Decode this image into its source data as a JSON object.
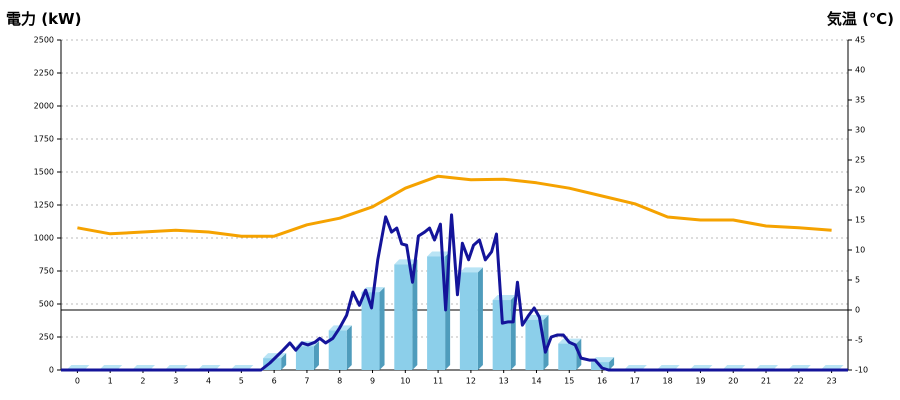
{
  "chart_data": {
    "type": "combo",
    "y_axis_title": "電力 (kW)",
    "y2_axis_title": "気温 (℃)",
    "y_title_color": "#1f5fa8",
    "y2_title_color": "#f08a1c",
    "categories": [
      "0",
      "1",
      "2",
      "3",
      "4",
      "5",
      "6",
      "7",
      "8",
      "9",
      "10",
      "11",
      "12",
      "13",
      "14",
      "15",
      "16",
      "17",
      "18",
      "19",
      "20",
      "21",
      "22",
      "23"
    ],
    "xlim": [
      -0.5,
      23.5
    ],
    "ylim": [
      0,
      2500
    ],
    "yticks": [
      0,
      250,
      500,
      750,
      1000,
      1250,
      1500,
      1750,
      2000,
      2250,
      2500
    ],
    "y2lim": [
      -10,
      45
    ],
    "y2ticks": [
      -10,
      -5,
      0,
      5,
      10,
      15,
      20,
      25,
      30,
      35,
      40,
      45
    ],
    "grid": true,
    "y2_zero_line": true,
    "series": [
      {
        "type": "bar",
        "color": "#8ccfea",
        "values": [
          0,
          0,
          0,
          0,
          0,
          0,
          90,
          180,
          300,
          590,
          800,
          860,
          740,
          530,
          380,
          200,
          60,
          0,
          0,
          0,
          0,
          0,
          0,
          0
        ]
      },
      {
        "type": "line",
        "color": "#14149a",
        "x": [
          -0.5,
          5.6,
          5.87,
          6.27,
          6.48,
          6.66,
          6.85,
          7.03,
          7.24,
          7.39,
          7.57,
          7.79,
          8.0,
          8.21,
          8.4,
          8.6,
          8.79,
          8.97,
          9.16,
          9.4,
          9.58,
          9.74,
          9.89,
          10.04,
          10.22,
          10.4,
          10.59,
          10.74,
          10.89,
          11.07,
          11.23,
          11.41,
          11.59,
          11.74,
          11.93,
          12.08,
          12.26,
          12.44,
          12.63,
          12.78,
          12.96,
          13.14,
          13.29,
          13.42,
          13.57,
          13.75,
          13.93,
          14.09,
          14.27,
          14.45,
          14.63,
          14.82,
          15.0,
          15.18,
          15.36,
          15.61,
          15.79,
          16.0,
          16.2,
          23.5
        ],
        "values": [
          0,
          0,
          53,
          150,
          205,
          150,
          205,
          190,
          210,
          240,
          205,
          240,
          320,
          415,
          590,
          490,
          605,
          470,
          835,
          1160,
          1045,
          1075,
          955,
          945,
          665,
          1015,
          1045,
          1075,
          985,
          1105,
          455,
          1175,
          570,
          960,
          835,
          945,
          985,
          835,
          895,
          1030,
          355,
          365,
          365,
          665,
          340,
          410,
          470,
          400,
          135,
          250,
          265,
          265,
          210,
          190,
          90,
          75,
          75,
          15,
          0,
          0
        ]
      },
      {
        "type": "line",
        "axis": "y2",
        "color": "#f5a200",
        "values": [
          13.7,
          12.7,
          13,
          13.3,
          13,
          12.3,
          12.3,
          14.2,
          15.3,
          17.2,
          20.3,
          22.3,
          21.7,
          21.8,
          21.2,
          20.3,
          19,
          17.7,
          15.5,
          15,
          15,
          14,
          13.7,
          13.3
        ]
      }
    ]
  }
}
